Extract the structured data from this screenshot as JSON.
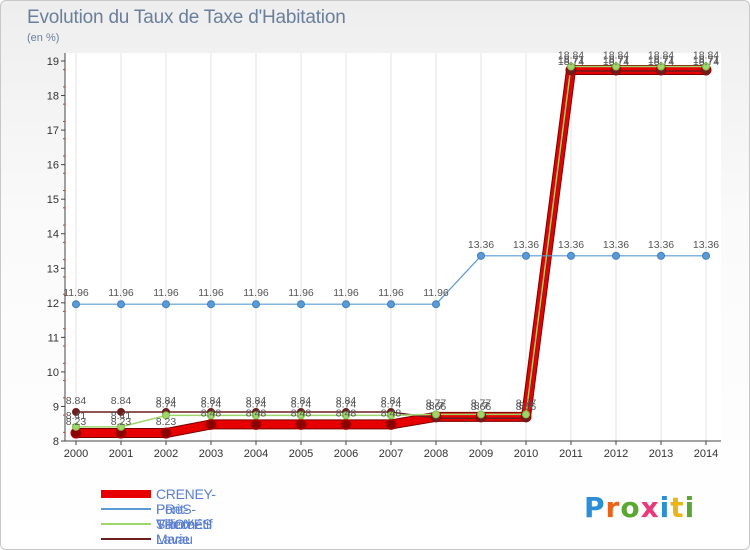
{
  "header": {
    "title": "Evolution du Taux de Taxe d'Habitation",
    "unit": "(en %)"
  },
  "logo": {
    "text": "Proxiti",
    "colors": [
      "#2a8fd6",
      "#e8641b",
      "#5aa832",
      "#e83a7a",
      "#2a8fd6",
      "#e8b51b",
      "#5aa832"
    ]
  },
  "chart_data": {
    "type": "line",
    "title": "Evolution du Taux de Taxe d'Habitation",
    "ylabel": "(en %)",
    "xlabel": "",
    "ylim": [
      8,
      19
    ],
    "yticks": [
      "8",
      "9",
      "10",
      "11",
      "12",
      "13",
      "14",
      "15",
      "16",
      "17",
      "18",
      "19"
    ],
    "categories": [
      "2000",
      "2001",
      "2002",
      "2003",
      "2004",
      "2005",
      "2006",
      "2007",
      "2008",
      "2009",
      "2010",
      "2011",
      "2012",
      "2013",
      "2014"
    ],
    "series": [
      {
        "name": "Lavau",
        "color": "#6b1f1f",
        "values": [
          8.84,
          8.84,
          8.84,
          8.84,
          8.84,
          8.84,
          8.84,
          8.84,
          8.66,
          8.66,
          8.66,
          18.71,
          18.71,
          18.71,
          18.71
        ],
        "labels": [
          "8.84",
          "8.84",
          "8.84",
          "8.84",
          "8.84",
          "8.84",
          "8.84",
          "8.84",
          "8.66",
          "8.66",
          "8.66",
          "18.71",
          "18.71",
          "18.71",
          "18.71"
        ]
      },
      {
        "name": "Villechétif",
        "color": "#9fd66b",
        "values": [
          8.41,
          8.41,
          8.74,
          8.74,
          8.74,
          8.74,
          8.74,
          8.74,
          8.77,
          8.77,
          8.77,
          18.84,
          18.84,
          18.84,
          18.84
        ],
        "labels": [
          "8.41",
          "8.41",
          "8.74",
          "8.74",
          "8.74",
          "8.74",
          "8.74",
          "8.74",
          "8.77",
          "8.77",
          "8.77",
          "18.84",
          "18.84",
          "18.84",
          "18.84"
        ]
      },
      {
        "name": "Pont-Sainte-Marie",
        "color": "#5b9bd5",
        "values": [
          11.96,
          11.96,
          11.96,
          11.96,
          11.96,
          11.96,
          11.96,
          11.96,
          11.96,
          13.36,
          13.36,
          13.36,
          13.36,
          13.36,
          13.36
        ],
        "labels": [
          "11.96",
          "11.96",
          "11.96",
          "11.96",
          "11.96",
          "11.96",
          "11.96",
          "11.96",
          "11.96",
          "13.36",
          "13.36",
          "13.36",
          "13.36",
          "13.36",
          "13.36"
        ]
      },
      {
        "name": "CRENEY-PRèS-TROYES",
        "color": "#e60000",
        "values": [
          8.23,
          8.23,
          8.23,
          8.48,
          8.48,
          8.48,
          8.48,
          8.48,
          8.7,
          8.7,
          8.7,
          18.74,
          18.74,
          18.74,
          18.74
        ],
        "labels": [
          "8.23",
          "8.23",
          "8.23",
          "8.48",
          "8.48",
          "8.48",
          "8.48",
          "8.48",
          "8.7",
          "8.7",
          "8.7",
          "18.74",
          "18.74",
          "18.74",
          "18.74"
        ]
      }
    ],
    "legend": [
      {
        "name": "CRENEY-PRèS-TROYES",
        "color": "#e60000"
      },
      {
        "name": "Pont-Sainte-Marie",
        "color": "#5b9bd5"
      },
      {
        "name": "Villechétif",
        "color": "#9fd66b"
      },
      {
        "name": "Lavau",
        "color": "#6b1f1f"
      }
    ],
    "legend_position": "bottom-left"
  }
}
